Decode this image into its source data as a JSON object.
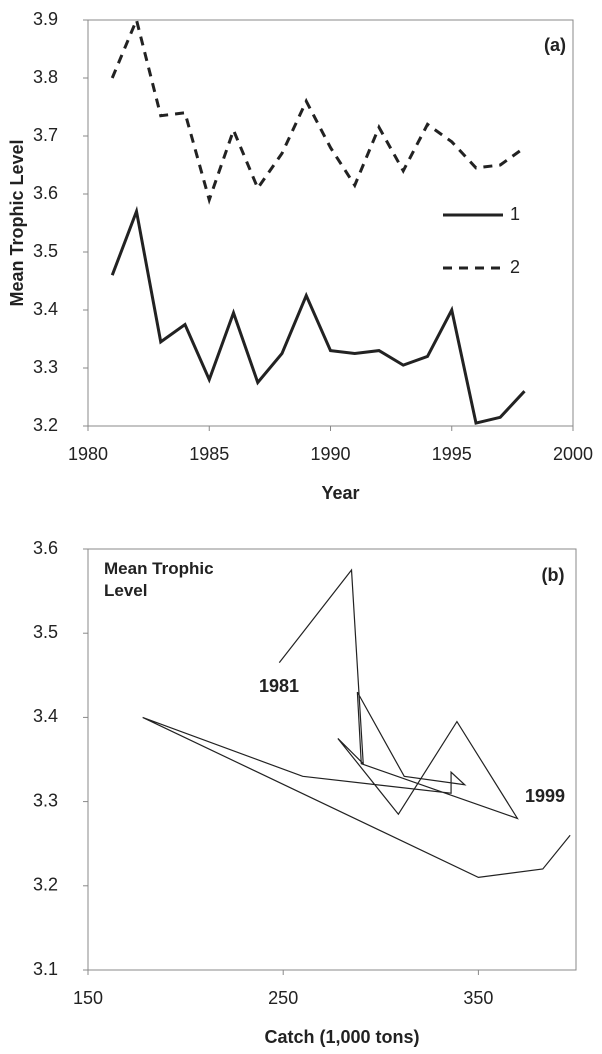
{
  "chart_data": [
    {
      "type": "line",
      "xlabel": "Year",
      "ylabel": "Mean Trophic Level",
      "annotations": [
        "(a)"
      ],
      "x": [
        1981,
        1982,
        1983,
        1984,
        1985,
        1986,
        1987,
        1988,
        1989,
        1990,
        1991,
        1992,
        1993,
        1994,
        1995,
        1996,
        1997,
        1998
      ],
      "series": [
        {
          "name": "1",
          "color": "#222222",
          "line_style": "solid",
          "values": [
            3.46,
            3.57,
            3.345,
            3.375,
            3.28,
            3.395,
            3.275,
            3.325,
            3.425,
            3.33,
            3.325,
            3.33,
            3.305,
            3.32,
            3.4,
            3.205,
            3.215,
            3.26
          ]
        },
        {
          "name": "2",
          "color": "#222222",
          "line_style": "dashed",
          "values": [
            3.8,
            3.9,
            3.735,
            3.74,
            3.59,
            3.71,
            3.61,
            3.67,
            3.76,
            3.68,
            3.615,
            3.715,
            3.64,
            3.72,
            3.69,
            3.645,
            3.65,
            3.68
          ]
        }
      ],
      "xlim": [
        1980,
        2000
      ],
      "xticks": [
        1980,
        1985,
        1990,
        1995,
        2000
      ],
      "ylim": [
        3.2,
        3.9
      ],
      "yticks": [
        3.2,
        3.3,
        3.4,
        3.5,
        3.6,
        3.7,
        3.8,
        3.9
      ],
      "legend": "right"
    },
    {
      "type": "line",
      "xlabel": "Catch (1,000 tons)",
      "ylabel": "Mean Trophic Level",
      "annotations": [
        "(b)",
        "1981",
        "1999"
      ],
      "x": [
        248,
        285,
        291,
        278,
        309,
        339,
        370,
        290,
        288,
        312,
        343,
        336,
        336,
        260,
        178,
        350,
        383,
        397
      ],
      "series": [
        {
          "color": "#222222",
          "line_style": "thin",
          "values": [
            3.465,
            3.575,
            3.345,
            3.375,
            3.285,
            3.395,
            3.28,
            3.345,
            3.43,
            3.33,
            3.32,
            3.335,
            3.31,
            3.33,
            3.4,
            3.21,
            3.22,
            3.26
          ]
        }
      ],
      "xlim": [
        150,
        400
      ],
      "xticks": [
        150,
        250,
        350
      ],
      "ylim": [
        3.1,
        3.6
      ],
      "yticks": [
        3.1,
        3.2,
        3.3,
        3.4,
        3.5,
        3.6
      ]
    }
  ]
}
